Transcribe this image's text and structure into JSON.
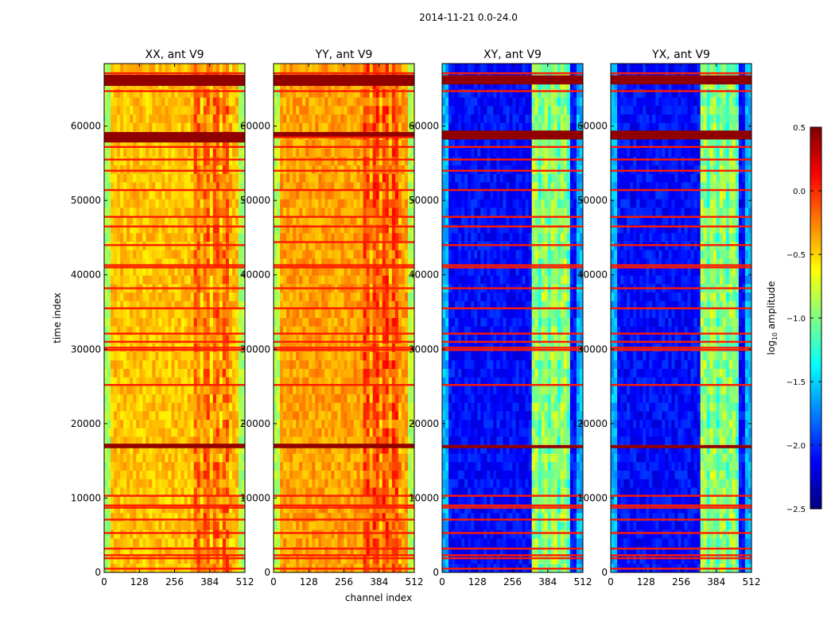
{
  "figure": {
    "suptitle": "2014-11-21 0.0-24.0",
    "xlabel": "channel index",
    "ylabel": "time index"
  },
  "colorbar": {
    "label_main": "log",
    "label_sub": "10",
    "label_rest": " amplitude",
    "ticks": [
      0.5,
      0.0,
      -0.5,
      -1.0,
      -1.5,
      -2.0,
      -2.5
    ],
    "tick_labels": [
      "0.5",
      "0.0",
      "−0.5",
      "−1.0",
      "−1.5",
      "−2.0",
      "−2.5"
    ],
    "vmin": -2.5,
    "vmax": 0.5,
    "colormap": "jet",
    "jet_stops": [
      "#000080",
      "#0000ff",
      "#0080ff",
      "#00ffff",
      "#80ff80",
      "#ffff00",
      "#ff8000",
      "#ff0000",
      "#800000"
    ]
  },
  "chart_data": [
    {
      "type": "heatmap",
      "title": "XX, ant V9",
      "xlabel": "channel index",
      "ylabel": "time index",
      "xlim": [
        0,
        512
      ],
      "ylim": [
        0,
        68400
      ],
      "xticks": [
        0,
        128,
        256,
        384,
        512
      ],
      "yticks": [
        0,
        10000,
        20000,
        30000,
        40000,
        50000,
        60000
      ],
      "band_start_channel": 325,
      "band_end_channel": 470,
      "base_level": -0.45,
      "band_level": -0.2,
      "edge_level": -0.9,
      "flag_rows": [
        500,
        1900,
        2300,
        3200,
        5300,
        7100,
        8700,
        9000,
        10300,
        17000,
        25200,
        29900,
        30200,
        31000,
        32100,
        35500,
        38200,
        41000,
        41300,
        44000,
        46500,
        47800,
        51400,
        54000,
        55500,
        57200,
        58500,
        64700,
        65800,
        66700,
        67100
      ],
      "hot_blocks": [
        [
          16700,
          17300
        ],
        [
          57800,
          59200
        ],
        [
          65400,
          66900
        ]
      ]
    },
    {
      "type": "heatmap",
      "title": "YY, ant V9",
      "xlabel": "channel index",
      "ylabel": "time index",
      "xlim": [
        0,
        512
      ],
      "ylim": [
        0,
        68400
      ],
      "xticks": [
        0,
        128,
        256,
        384,
        512
      ],
      "yticks": [
        0,
        10000,
        20000,
        30000,
        40000,
        50000,
        60000
      ],
      "band_start_channel": 325,
      "band_end_channel": 470,
      "base_level": -0.35,
      "band_level": -0.1,
      "edge_level": -0.85,
      "flag_rows": [
        500,
        1900,
        2300,
        3200,
        5300,
        7100,
        8700,
        9000,
        10300,
        17000,
        25200,
        29900,
        30200,
        31000,
        32100,
        35500,
        38200,
        41000,
        41300,
        44400,
        46500,
        47800,
        51400,
        54000,
        55500,
        57200,
        58500,
        64700,
        65800,
        66700,
        67100
      ],
      "hot_blocks": [
        [
          16700,
          17300
        ],
        [
          58600,
          59200
        ],
        [
          65400,
          66900
        ]
      ]
    },
    {
      "type": "heatmap",
      "title": "XY, ant V9",
      "xlabel": "channel index",
      "ylabel": "time index",
      "xlim": [
        0,
        512
      ],
      "ylim": [
        0,
        68400
      ],
      "xticks": [
        0,
        128,
        256,
        384,
        512
      ],
      "yticks": [
        0,
        10000,
        20000,
        30000,
        40000,
        50000,
        60000
      ],
      "band_start_channel": 325,
      "band_end_channel": 470,
      "base_level": -2.1,
      "band_level": -0.9,
      "edge_level": -1.6,
      "flag_rows": [
        500,
        1900,
        2300,
        3200,
        5300,
        7100,
        8700,
        9000,
        10300,
        17000,
        25200,
        29900,
        30200,
        31000,
        32100,
        35500,
        38200,
        41000,
        41300,
        44000,
        46500,
        47800,
        51400,
        54000,
        55500,
        57200,
        58500,
        64700,
        65800,
        66700,
        67100
      ],
      "hot_blocks": [
        [
          16700,
          17100
        ],
        [
          58200,
          59400
        ],
        [
          65600,
          66800
        ]
      ]
    },
    {
      "type": "heatmap",
      "title": "YX, ant V9",
      "xlabel": "channel index",
      "ylabel": "time index",
      "xlim": [
        0,
        512
      ],
      "ylim": [
        0,
        68400
      ],
      "xticks": [
        0,
        128,
        256,
        384,
        512
      ],
      "yticks": [
        0,
        10000,
        20000,
        30000,
        40000,
        50000,
        60000
      ],
      "band_start_channel": 325,
      "band_end_channel": 470,
      "base_level": -2.1,
      "band_level": -0.9,
      "edge_level": -1.6,
      "flag_rows": [
        500,
        1900,
        2300,
        3200,
        5300,
        7100,
        8700,
        9000,
        10300,
        17000,
        25200,
        29900,
        30200,
        31000,
        32100,
        35500,
        38200,
        41000,
        41300,
        44000,
        46500,
        47800,
        51400,
        54000,
        55500,
        57200,
        58500,
        64700,
        65800,
        66700,
        67100
      ],
      "hot_blocks": [
        [
          16700,
          17100
        ],
        [
          58200,
          59400
        ],
        [
          65600,
          66800
        ]
      ]
    }
  ]
}
